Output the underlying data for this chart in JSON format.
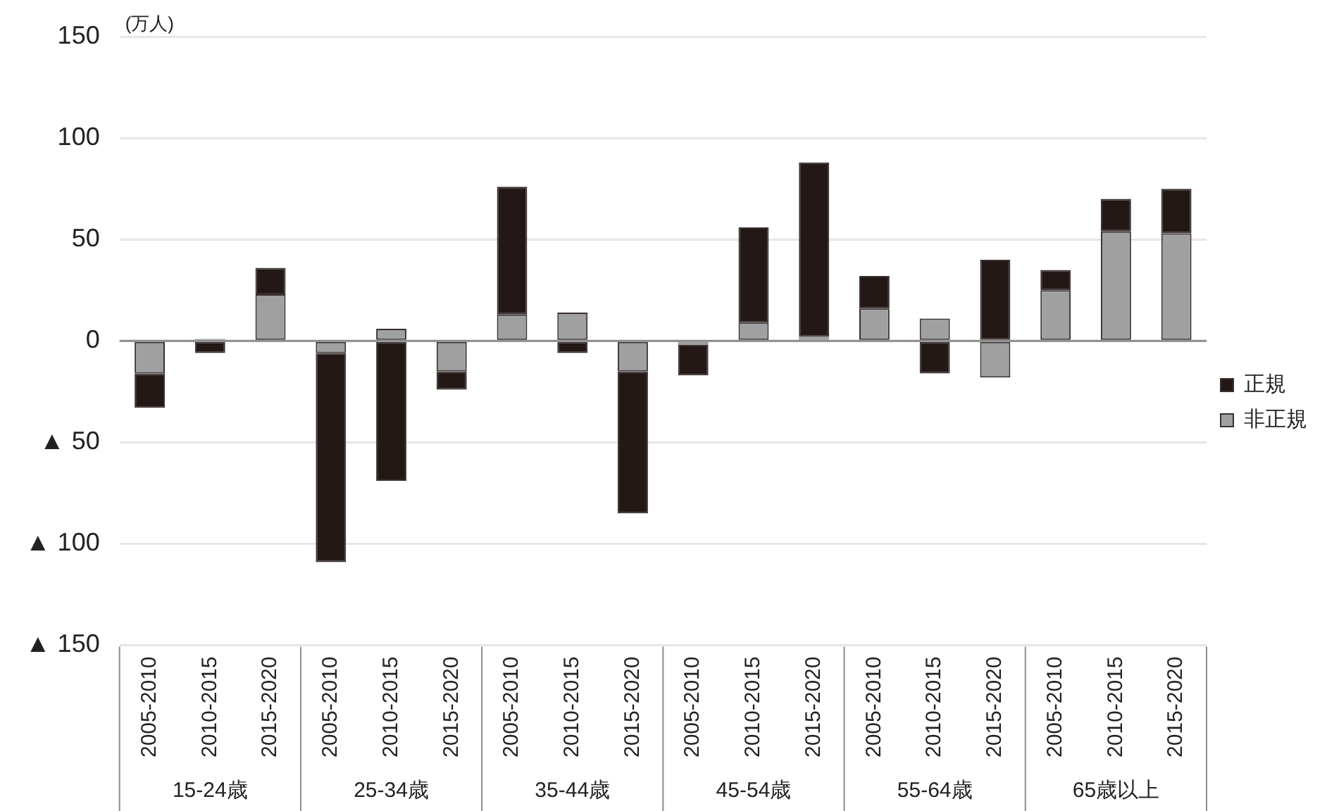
{
  "chart_data": {
    "type": "bar",
    "stacked": true,
    "ylabel": "(万人)",
    "categories": [
      "2005-2010",
      "2010-2015",
      "2015-2020",
      "2005-2010",
      "2010-2015",
      "2015-2020",
      "2005-2010",
      "2010-2015",
      "2015-2020",
      "2005-2010",
      "2010-2015",
      "2015-2020",
      "2005-2010",
      "2010-2015",
      "2015-2020",
      "2005-2010",
      "2010-2015",
      "2015-2020"
    ],
    "annotations": [
      "15-24歳",
      "25-34歳",
      "35-44歳",
      "45-54歳",
      "55-64歳",
      "65歳以上"
    ],
    "series": [
      {
        "name": "非正規",
        "color": "#a0a0a0",
        "values": [
          -16,
          1,
          23,
          -6,
          6,
          -15,
          13,
          14,
          -15,
          -2,
          9,
          2,
          16,
          11,
          -18,
          25,
          54,
          53
        ]
      },
      {
        "name": "正規",
        "color": "#231815",
        "values": [
          -17,
          -6,
          13,
          -103,
          -69,
          -9,
          63,
          -6,
          -70,
          -15,
          47,
          86,
          16,
          -16,
          40,
          10,
          16,
          22
        ]
      }
    ],
    "ylim": [
      -150,
      150
    ],
    "yticks": [
      {
        "value": -150,
        "label": "▲ 150"
      },
      {
        "value": -100,
        "label": "▲ 100"
      },
      {
        "value": -50,
        "label": "▲ 50"
      },
      0,
      50,
      100,
      150
    ],
    "grid": "y",
    "legend": "right"
  }
}
